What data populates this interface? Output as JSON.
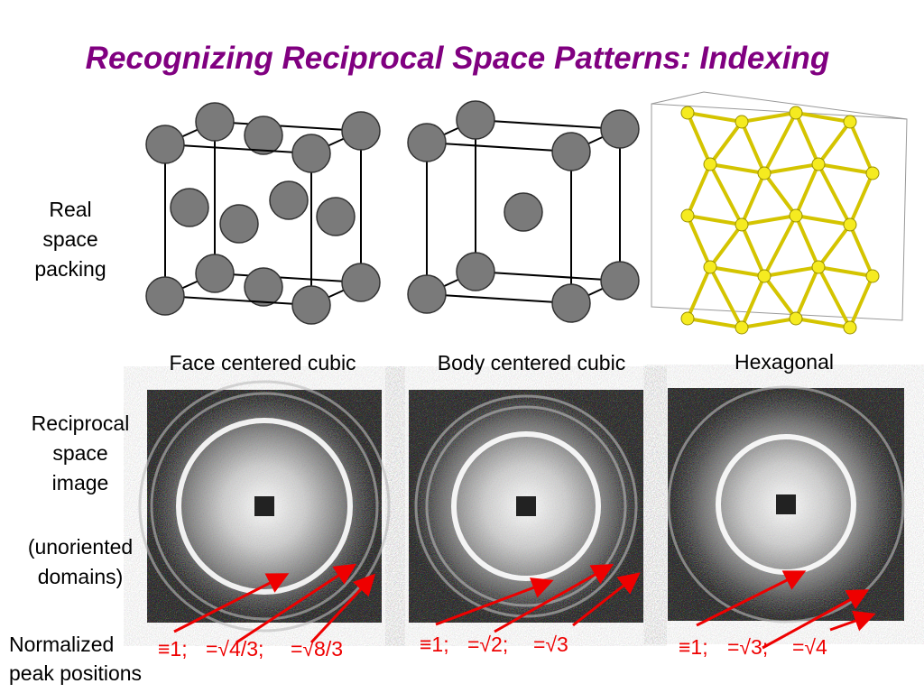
{
  "header": {
    "title": "Recognizing Reciprocal Space Patterns: Indexing"
  },
  "row_labels": {
    "real": [
      "Real",
      "space",
      "packing"
    ],
    "reciprocal": [
      "Reciprocal",
      "space",
      "image"
    ],
    "note": [
      "(unoriented",
      "domains)"
    ],
    "peaks": [
      "Normalized",
      "peak positions"
    ]
  },
  "columns": [
    "Face centered cubic",
    "Body centered cubic",
    "Hexagonal"
  ],
  "peak_positions": [
    [
      "≡1;",
      "=√4/3;",
      "=√8/3"
    ],
    [
      "≡1;",
      "=√2;",
      "=√3"
    ],
    [
      "≡1;",
      "=√3;",
      "=√4"
    ]
  ]
}
